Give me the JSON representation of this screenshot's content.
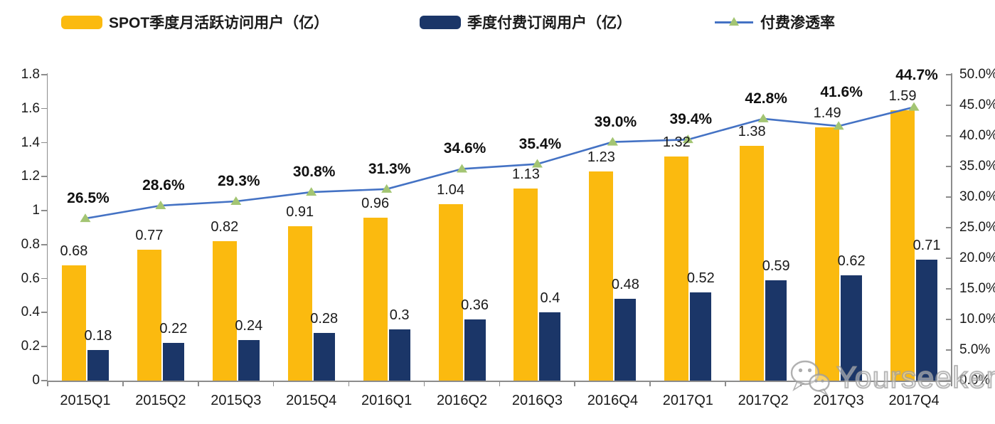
{
  "legend": {
    "items": [
      {
        "label": "SPOT季度月活跃访问用户（亿）",
        "type": "bar",
        "color": "#FBBA0F"
      },
      {
        "label": "季度付费订阅用户（亿）",
        "type": "bar",
        "color": "#1B3668"
      },
      {
        "label": "付费渗透率",
        "type": "line",
        "color": "#4472C4",
        "marker_color": "#A3C573"
      }
    ]
  },
  "chart_data": {
    "type": "combo-bar-line",
    "categories": [
      "2015Q1",
      "2015Q2",
      "2015Q3",
      "2015Q4",
      "2016Q1",
      "2016Q2",
      "2016Q3",
      "2016Q4",
      "2017Q1",
      "2017Q2",
      "2017Q3",
      "2017Q4"
    ],
    "series": [
      {
        "name": "SPOT季度月活跃访问用户（亿）",
        "type": "bar",
        "axis": "left",
        "color": "#FBBA0F",
        "values": [
          0.68,
          0.77,
          0.82,
          0.91,
          0.96,
          1.04,
          1.13,
          1.23,
          1.32,
          1.38,
          1.49,
          1.59
        ],
        "labels": [
          "0.68",
          "0.77",
          "0.82",
          "0.91",
          "0.96",
          "1.04",
          "1.13",
          "1.23",
          "1.32",
          "1.38",
          "1.49",
          "1.59"
        ]
      },
      {
        "name": "季度付费订阅用户（亿）",
        "type": "bar",
        "axis": "left",
        "color": "#1B3668",
        "values": [
          0.18,
          0.22,
          0.24,
          0.28,
          0.3,
          0.36,
          0.4,
          0.48,
          0.52,
          0.59,
          0.62,
          0.71
        ],
        "labels": [
          "0.18",
          "0.22",
          "0.24",
          "0.28",
          "0.3",
          "0.36",
          "0.4",
          "0.48",
          "0.52",
          "0.59",
          "0.62",
          "0.71"
        ]
      },
      {
        "name": "付费渗透率",
        "type": "line",
        "axis": "right",
        "color": "#4472C4",
        "marker": "triangle",
        "marker_color": "#A3C573",
        "values": [
          26.5,
          28.6,
          29.3,
          30.8,
          31.3,
          34.6,
          35.4,
          39.0,
          39.4,
          42.8,
          41.6,
          44.7
        ],
        "labels": [
          "26.5%",
          "28.6%",
          "29.3%",
          "30.8%",
          "31.3%",
          "34.6%",
          "35.4%",
          "39.0%",
          "39.4%",
          "42.8%",
          "41.6%",
          "44.7%"
        ]
      }
    ],
    "left_axis": {
      "min": 0,
      "max": 1.8,
      "tick_labels": [
        "0",
        "0.2",
        "0.4",
        "0.6",
        "0.8",
        "1",
        "1.2",
        "1.4",
        "1.6",
        "1.8"
      ]
    },
    "right_axis": {
      "min": 0,
      "max": 50,
      "tick_labels": [
        "0.0%",
        "5.0%",
        "10.0%",
        "15.0%",
        "20.0%",
        "25.0%",
        "30.0%",
        "35.0%",
        "40.0%",
        "45.0%",
        "50.0%"
      ]
    },
    "grid": false,
    "legend_position": "top",
    "title": ""
  },
  "watermark": {
    "text": "Yourseeker"
  }
}
